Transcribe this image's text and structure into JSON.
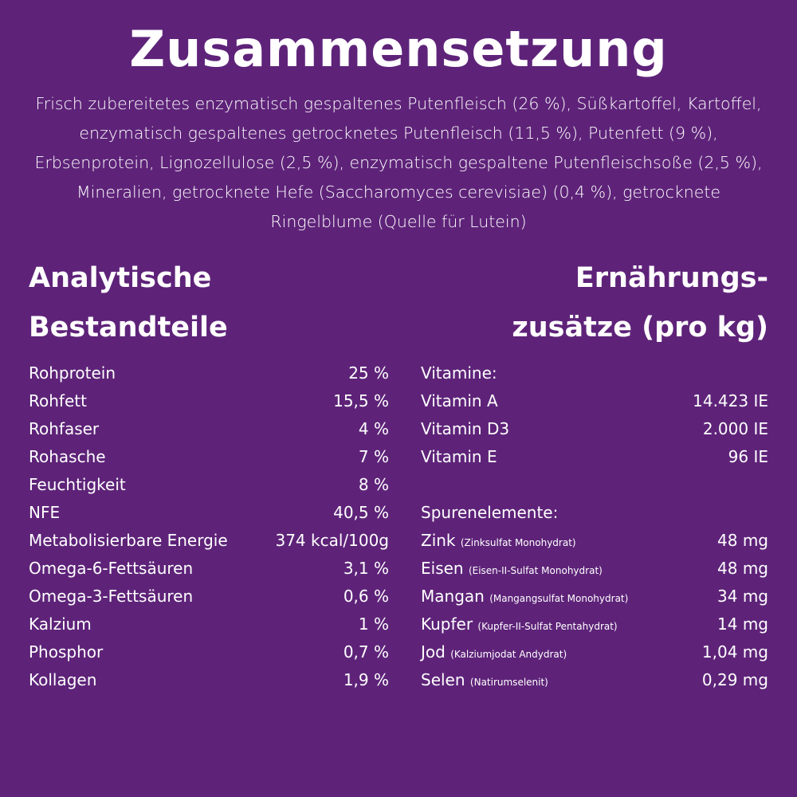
{
  "title": "Zusammensetzung",
  "intro": "Frisch zubereitetes enzymatisch gespaltenes Putenfleisch (26 %), Süßkartoffel, Kartoffel, enzymatisch gespaltenes getrocknetes Putenfleisch (11,5 %), Putenfett (9 %), Erbsenprotein, Lignozellulose (2,5 %), enzymatisch gespaltene Putenfleischsoße (2,5 %), Mineralien, getrocknete Hefe (Saccharomyces cerevisiae) (0,4 %), getrocknete Ringelblume (Quelle für Lutein)",
  "analytic": {
    "heading_1": "Analytische",
    "heading_2": "Bestandteile",
    "rows": [
      {
        "label": "Rohprotein",
        "value": "25 %"
      },
      {
        "label": "Rohfett",
        "value": "15,5 %"
      },
      {
        "label": "Rohfaser",
        "value": "4 %"
      },
      {
        "label": "Rohasche",
        "value": "7 %"
      },
      {
        "label": "Feuchtigkeit",
        "value": "8 %"
      },
      {
        "label": "NFE",
        "value": "40,5 %"
      },
      {
        "label": "Metabolisierbare Energie",
        "value": "374 kcal/100g"
      },
      {
        "label": "Omega-6-Fettsäuren",
        "value": "3,1 %"
      },
      {
        "label": "Omega-3-Fettsäuren",
        "value": "0,6 %"
      },
      {
        "label": "Kalzium",
        "value": "1 %"
      },
      {
        "label": "Phosphor",
        "value": "0,7 %"
      },
      {
        "label": "Kollagen",
        "value": "1,9 %"
      }
    ]
  },
  "additives": {
    "heading_1": "Ernährungs-",
    "heading_2": "zusätze (pro kg)",
    "vitamins_label": "Vitamine:",
    "vitamins": [
      {
        "label": "Vitamin A",
        "value": "14.423 IE"
      },
      {
        "label": "Vitamin D3",
        "value": "2.000 IE"
      },
      {
        "label": "Vitamin E",
        "value": "96 IE"
      }
    ],
    "trace_label": "Spurenelemente:",
    "trace": [
      {
        "label": "Zink",
        "note": "(Zinksulfat Monohydrat)",
        "value": "48 mg"
      },
      {
        "label": "Eisen",
        "note": "(Eisen-II-Sulfat Monohydrat)",
        "value": "48 mg"
      },
      {
        "label": "Mangan",
        "note": "(Mangangsulfat Monohydrat)",
        "value": "34 mg"
      },
      {
        "label": "Kupfer",
        "note": "(Kupfer-II-Sulfat Pentahydrat)",
        "value": "14 mg"
      },
      {
        "label": "Jod",
        "note": "(Kalziumjodat Andydrat)",
        "value": "1,04 mg"
      },
      {
        "label": "Selen",
        "note": "(Natirumselenit)",
        "value": "0,29 mg"
      }
    ]
  },
  "colors": {
    "background": "#5e2379",
    "text": "#ffffff"
  }
}
